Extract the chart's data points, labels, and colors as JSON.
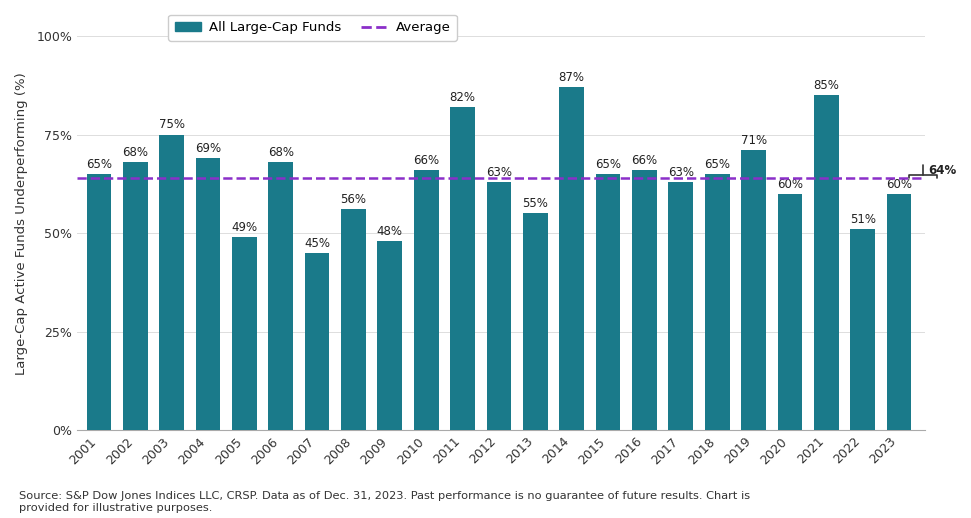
{
  "years": [
    2001,
    2002,
    2003,
    2004,
    2005,
    2006,
    2007,
    2008,
    2009,
    2010,
    2011,
    2012,
    2013,
    2014,
    2015,
    2016,
    2017,
    2018,
    2019,
    2020,
    2021,
    2022,
    2023
  ],
  "values": [
    65,
    68,
    75,
    69,
    49,
    68,
    45,
    56,
    48,
    66,
    82,
    63,
    55,
    87,
    65,
    66,
    63,
    65,
    71,
    60,
    85,
    51,
    60
  ],
  "average": 64,
  "bar_color": "#1a7a8a",
  "avg_line_color": "#8B2FC9",
  "ylabel": "Large-Cap Active Funds Underperforming (%)",
  "yticks": [
    0,
    25,
    50,
    75,
    100
  ],
  "ytick_labels": [
    "0%",
    "25%",
    "50%",
    "75%",
    "100%"
  ],
  "ylim_max": 100,
  "background_color": "#ffffff",
  "source_text": "Source: S&P Dow Jones Indices LLC, CRSP. Data as of Dec. 31, 2023. Past performance is no guarantee of future results. Chart is\nprovided for illustrative purposes.",
  "legend_bar_label": "All Large-Cap Funds",
  "legend_line_label": "Average",
  "label_fontsize": 8.5,
  "axis_fontsize": 9.0,
  "ylabel_fontsize": 9.5
}
